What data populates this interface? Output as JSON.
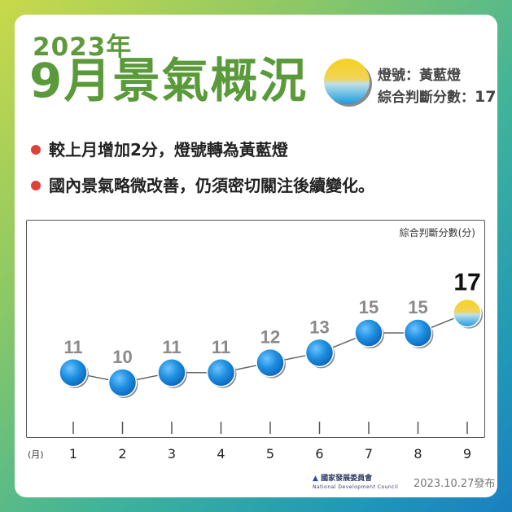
{
  "header": {
    "year": "2023年",
    "title": "9月景氣概況",
    "signal_label": "燈號：黃藍燈",
    "score_label": "綜合判斷分數：",
    "score_value": "17"
  },
  "bullets": [
    "較上月增加2分，燈號轉為黃藍燈",
    "國內景氣略微改善，仍須密切關注後續變化。"
  ],
  "colors": {
    "blue_light": "#1e8fe0",
    "yellow_blue_top": "#f2c81a",
    "yellow_blue_bottom": "#1ea0e0",
    "title_green": "#5b9a3a",
    "bullet_red": "#e0403a"
  },
  "chart_data": {
    "type": "line",
    "ylabel": "綜合判斷分數(分)",
    "xunit": "(月)",
    "categories": [
      "1",
      "2",
      "3",
      "4",
      "5",
      "6",
      "7",
      "8",
      "9"
    ],
    "values": [
      11,
      10,
      11,
      11,
      12,
      13,
      15,
      15,
      17
    ],
    "light_signals": [
      "blue",
      "blue",
      "blue",
      "blue",
      "blue",
      "blue",
      "blue",
      "blue",
      "yellow-blue"
    ]
  },
  "footer": {
    "org_name": "國家發展委員會",
    "org_name_en": "National Development Council",
    "release_date": "2023.10.27發布"
  }
}
